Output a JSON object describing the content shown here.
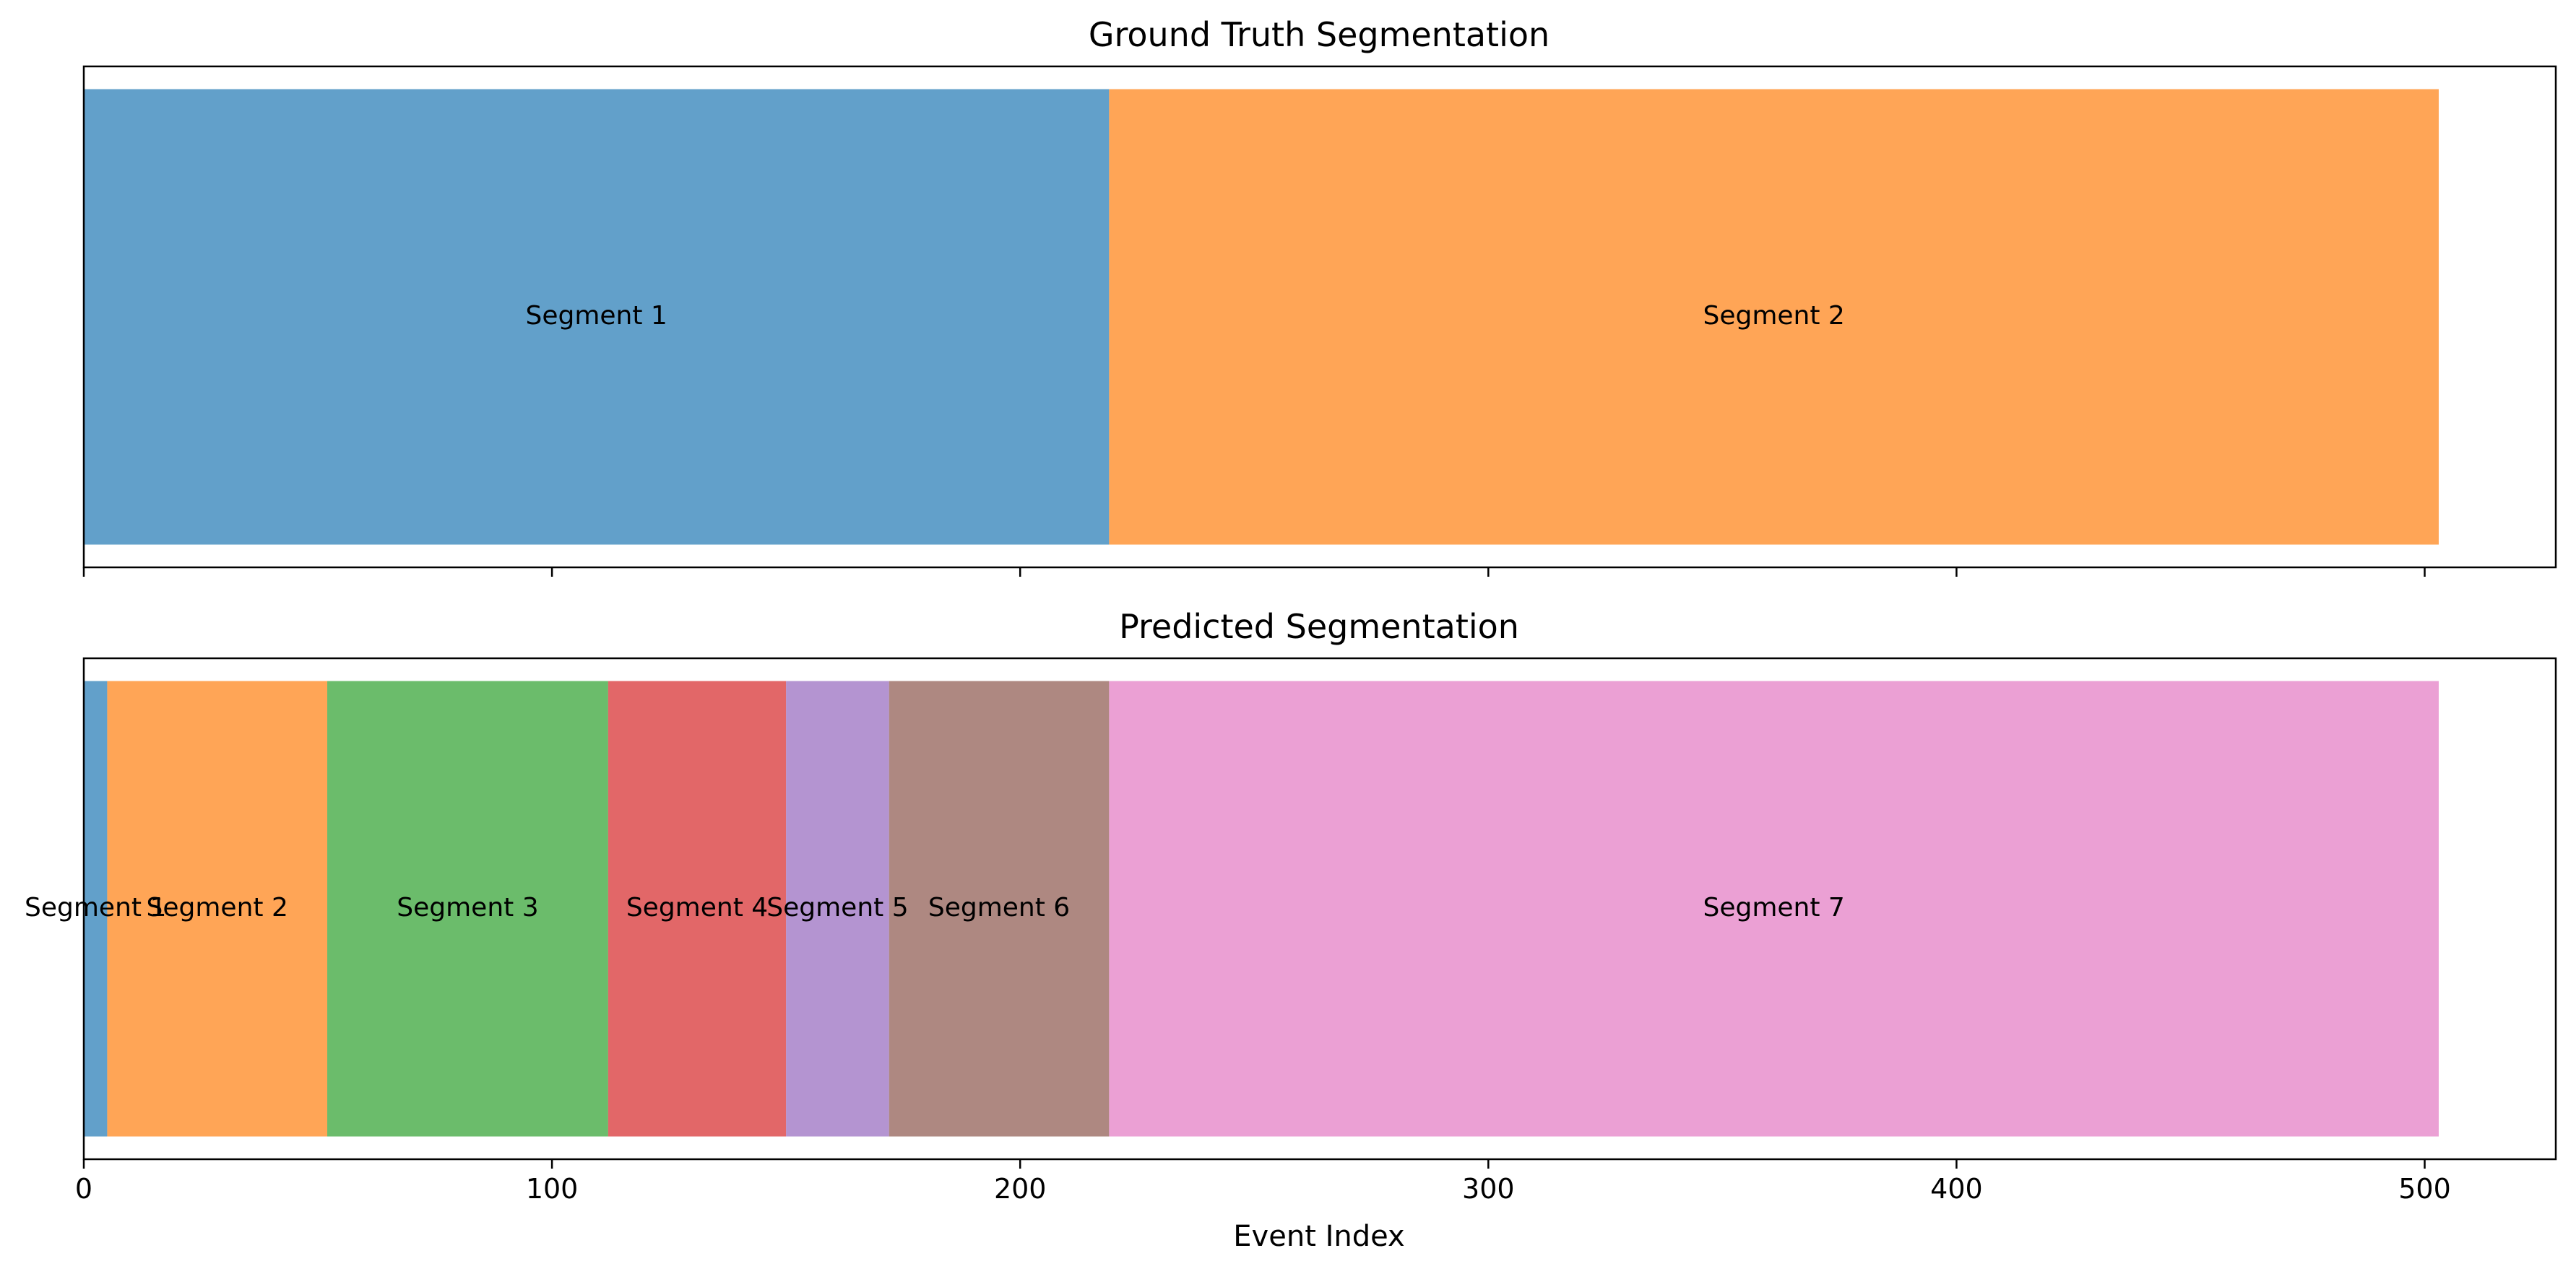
{
  "chart_data": [
    {
      "type": "bar",
      "orientation": "horizontal-stacked",
      "title": "Ground Truth Segmentation",
      "xlim": [
        0,
        528
      ],
      "segments": [
        {
          "label": "Segment 1",
          "start": 0,
          "end": 219,
          "color": "#1f77b4"
        },
        {
          "label": "Segment 2",
          "start": 219,
          "end": 503,
          "color": "#ff7f0e"
        }
      ],
      "xticks": [
        0,
        100,
        200,
        300,
        400,
        500
      ],
      "show_tick_labels": false,
      "xlabel": ""
    },
    {
      "type": "bar",
      "orientation": "horizontal-stacked",
      "title": "Predicted Segmentation",
      "xlim": [
        0,
        528
      ],
      "segments": [
        {
          "label": "Segment 1",
          "start": 0,
          "end": 5,
          "color": "#1f77b4"
        },
        {
          "label": "Segment 2",
          "start": 5,
          "end": 52,
          "color": "#ff7f0e"
        },
        {
          "label": "Segment 3",
          "start": 52,
          "end": 112,
          "color": "#2ca02c"
        },
        {
          "label": "Segment 4",
          "start": 112,
          "end": 150,
          "color": "#d62728"
        },
        {
          "label": "Segment 5",
          "start": 150,
          "end": 172,
          "color": "#9467bd"
        },
        {
          "label": "Segment 6",
          "start": 172,
          "end": 219,
          "color": "#8c564b"
        },
        {
          "label": "Segment 7",
          "start": 219,
          "end": 503,
          "color": "#e377c2"
        }
      ],
      "xticks": [
        0,
        100,
        200,
        300,
        400,
        500
      ],
      "show_tick_labels": true,
      "xlabel": "Event Index"
    }
  ]
}
